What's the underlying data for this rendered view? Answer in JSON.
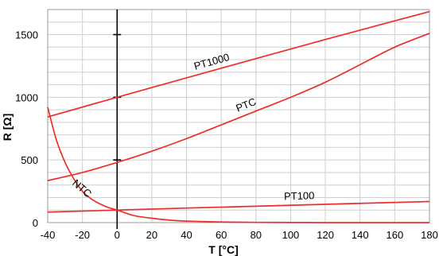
{
  "chart_data": {
    "type": "line",
    "title": "",
    "xlabel": "T [°C]",
    "ylabel": "R [Ω]",
    "xlim": [
      -40,
      180
    ],
    "ylim": [
      0,
      1700
    ],
    "x_ticks": [
      -40,
      -20,
      0,
      20,
      40,
      60,
      80,
      100,
      120,
      140,
      160,
      180
    ],
    "y_ticks": [
      0,
      500,
      1000,
      1500
    ],
    "grid": true,
    "legend": "none (series labelled directly on curves)",
    "line_color": "#ee2d2d",
    "axis_color": "#000000",
    "series": [
      {
        "name": "PT1000",
        "x": [
          -40,
          0,
          40,
          80,
          120,
          160,
          180
        ],
        "y": [
          843,
          1000,
          1155,
          1309,
          1461,
          1610,
          1684
        ]
      },
      {
        "name": "PTC",
        "x": [
          -40,
          -20,
          0,
          20,
          40,
          60,
          80,
          100,
          120,
          140,
          160,
          180
        ],
        "y": [
          335,
          400,
          480,
          570,
          670,
          780,
          890,
          1000,
          1120,
          1260,
          1400,
          1510
        ]
      },
      {
        "name": "PT100",
        "x": [
          -40,
          0,
          40,
          80,
          120,
          160,
          180
        ],
        "y": [
          84,
          100,
          116,
          131,
          146,
          161,
          168
        ]
      },
      {
        "name": "NTC",
        "x": [
          -40,
          -35,
          -30,
          -25,
          -20,
          -15,
          -10,
          -5,
          0,
          10,
          20,
          30,
          40,
          60,
          80,
          100,
          120,
          140,
          160,
          180
        ],
        "y": [
          920,
          660,
          480,
          350,
          250,
          190,
          150,
          120,
          100,
          55,
          35,
          20,
          12,
          5,
          2,
          1,
          0,
          0,
          0,
          0
        ]
      }
    ]
  }
}
